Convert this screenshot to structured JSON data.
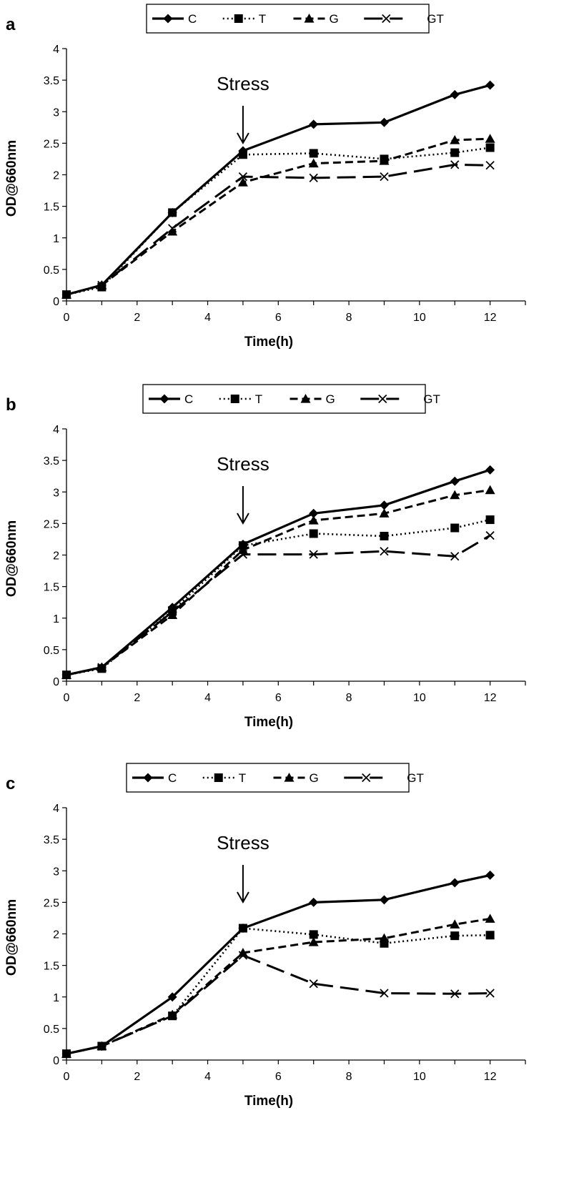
{
  "chart_data": [
    {
      "type": "line",
      "panel": "a",
      "xlabel": "Time(h)",
      "ylabel": "OD@660nm",
      "xlim": [
        0,
        13
      ],
      "ylim": [
        0,
        4
      ],
      "xticks": [
        0,
        2,
        4,
        6,
        8,
        10,
        12
      ],
      "yticks": [
        0,
        0.5,
        1,
        1.5,
        2,
        2.5,
        3,
        3.5,
        4
      ],
      "legend_position": "top",
      "annotation": {
        "text": "Stress",
        "x": 5
      },
      "series": [
        {
          "name": "C",
          "x": [
            0,
            1,
            3,
            5,
            7,
            9,
            11,
            12
          ],
          "values": [
            0.1,
            0.25,
            1.4,
            2.38,
            2.8,
            2.83,
            3.27,
            3.42
          ]
        },
        {
          "name": "T",
          "x": [
            0,
            1,
            3,
            5,
            7,
            9,
            11,
            12
          ],
          "values": [
            0.1,
            0.22,
            1.4,
            2.32,
            2.34,
            2.25,
            2.35,
            2.43
          ]
        },
        {
          "name": "G",
          "x": [
            0,
            1,
            3,
            5,
            7,
            9,
            11,
            12
          ],
          "values": [
            0.1,
            0.25,
            1.1,
            1.88,
            2.18,
            2.22,
            2.55,
            2.57
          ]
        },
        {
          "name": "GT",
          "x": [
            0,
            1,
            3,
            5,
            7,
            9,
            11,
            12
          ],
          "values": [
            0.1,
            0.25,
            1.15,
            1.97,
            1.95,
            1.97,
            2.16,
            2.15
          ]
        }
      ]
    },
    {
      "type": "line",
      "panel": "b",
      "xlabel": "Time(h)",
      "ylabel": "OD@660nm",
      "xlim": [
        0,
        13
      ],
      "ylim": [
        0,
        4
      ],
      "xticks": [
        0,
        2,
        4,
        6,
        8,
        10,
        12
      ],
      "yticks": [
        0,
        0.5,
        1,
        1.5,
        2,
        2.5,
        3,
        3.5,
        4
      ],
      "legend_position": "top",
      "annotation": {
        "text": "Stress",
        "x": 5
      },
      "series": [
        {
          "name": "C",
          "x": [
            0,
            1,
            3,
            5,
            7,
            9,
            11,
            12
          ],
          "values": [
            0.1,
            0.22,
            1.17,
            2.17,
            2.66,
            2.79,
            3.17,
            3.35
          ]
        },
        {
          "name": "T",
          "x": [
            0,
            1,
            3,
            5,
            7,
            9,
            11,
            12
          ],
          "values": [
            0.1,
            0.2,
            1.12,
            2.15,
            2.34,
            2.3,
            2.43,
            2.56
          ]
        },
        {
          "name": "G",
          "x": [
            0,
            1,
            3,
            5,
            7,
            9,
            11,
            12
          ],
          "values": [
            0.1,
            0.22,
            1.05,
            2.08,
            2.55,
            2.66,
            2.95,
            3.03
          ]
        },
        {
          "name": "GT",
          "x": [
            0,
            1,
            3,
            5,
            7,
            9,
            11,
            12
          ],
          "values": [
            0.1,
            0.22,
            1.1,
            2.01,
            2.01,
            2.06,
            1.98,
            2.31
          ]
        }
      ]
    },
    {
      "type": "line",
      "panel": "c",
      "xlabel": "Time(h)",
      "ylabel": "OD@660nm",
      "xlim": [
        0,
        13
      ],
      "ylim": [
        0,
        4
      ],
      "xticks": [
        0,
        2,
        4,
        6,
        8,
        10,
        12
      ],
      "yticks": [
        0,
        0.5,
        1,
        1.5,
        2,
        2.5,
        3,
        3.5,
        4
      ],
      "legend_position": "top",
      "annotation": {
        "text": "Stress",
        "x": 5
      },
      "series": [
        {
          "name": "C",
          "x": [
            0,
            1,
            3,
            5,
            7,
            9,
            11,
            12
          ],
          "values": [
            0.1,
            0.22,
            1.0,
            2.09,
            2.5,
            2.54,
            2.81,
            2.93
          ]
        },
        {
          "name": "T",
          "x": [
            0,
            1,
            3,
            5,
            7,
            9,
            11,
            12
          ],
          "values": [
            0.1,
            0.22,
            0.7,
            2.09,
            1.99,
            1.85,
            1.97,
            1.98
          ]
        },
        {
          "name": "G",
          "x": [
            0,
            1,
            3,
            5,
            7,
            9,
            11,
            12
          ],
          "values": [
            0.1,
            0.22,
            0.72,
            1.7,
            1.87,
            1.93,
            2.15,
            2.24
          ]
        },
        {
          "name": "GT",
          "x": [
            0,
            1,
            3,
            5,
            7,
            9,
            11,
            12
          ],
          "values": [
            0.1,
            0.22,
            0.7,
            1.66,
            1.21,
            1.06,
            1.05,
            1.06
          ]
        }
      ]
    }
  ],
  "styles": {
    "line_color": "#000000",
    "background": "#ffffff"
  }
}
